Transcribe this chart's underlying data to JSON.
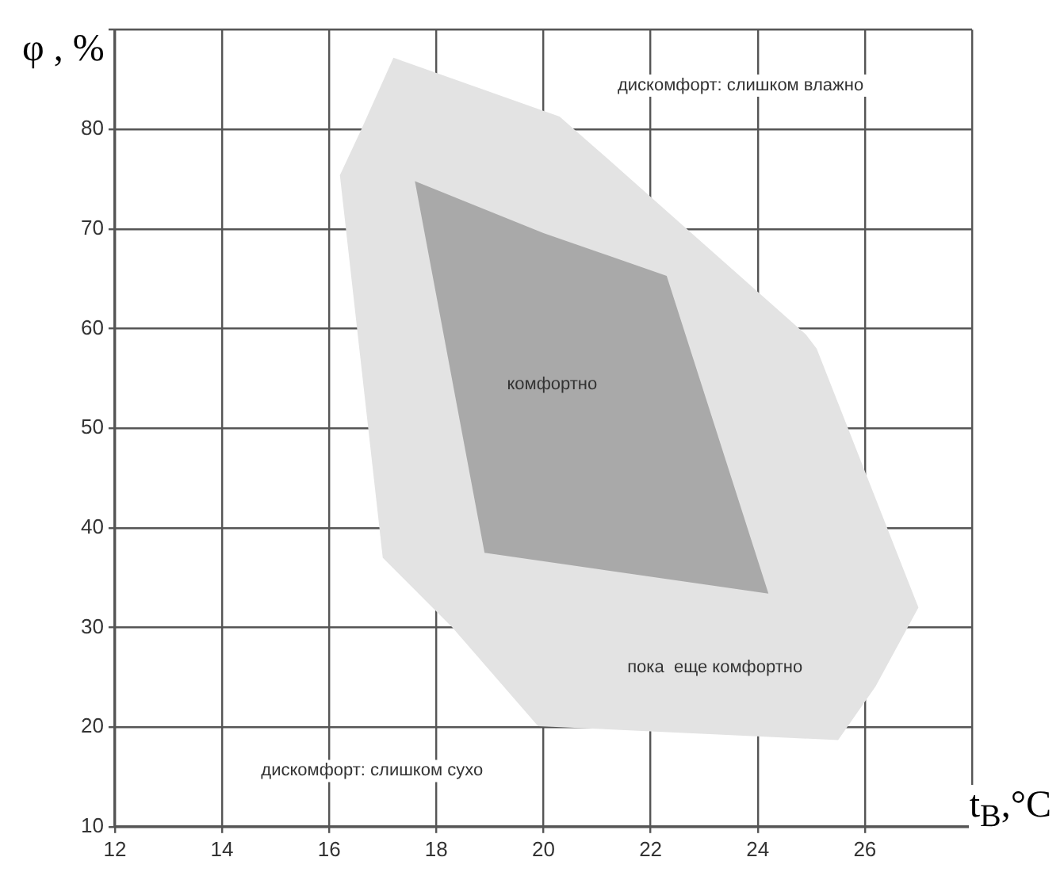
{
  "chart_data": {
    "type": "area",
    "xlabel": "t$_{В}$,°C",
    "ylabel": "φ , %",
    "xlim": [
      12,
      28
    ],
    "ylim": [
      10,
      90
    ],
    "xticks": [
      12,
      14,
      16,
      18,
      20,
      22,
      24,
      26,
      {
        "value": 28,
        "label": null
      }
    ],
    "yticks": [
      10,
      20,
      30,
      40,
      50,
      60,
      70,
      80,
      {
        "value": 90,
        "label": null
      }
    ],
    "grid": true,
    "legend": false,
    "series": [
      {
        "color": "#e3e3e3",
        "x": [
          17.2,
          20.3,
          21.0,
          24.9,
          25.1,
          27.0,
          26.2,
          25.5,
          19.9,
          18.3,
          17.0,
          16.2,
          16.6
        ],
        "values": [
          87.2,
          81.3,
          78,
          59.4,
          58,
          32,
          24.1,
          18.7,
          20.1,
          30,
          37,
          75.4,
          80
        ]
      },
      {
        "color": "#a9a9a9",
        "x": [
          17.6,
          20.0,
          22.3,
          24.2,
          18.9
        ],
        "values": [
          74.8,
          69.6,
          65.3,
          33.4,
          37.5
        ]
      }
    ],
    "annotations": [
      "дискомфорт: слишком влажно",
      "комфортно",
      "пока  еще комфортно",
      "дискомфорт: слишком сухо"
    ]
  }
}
